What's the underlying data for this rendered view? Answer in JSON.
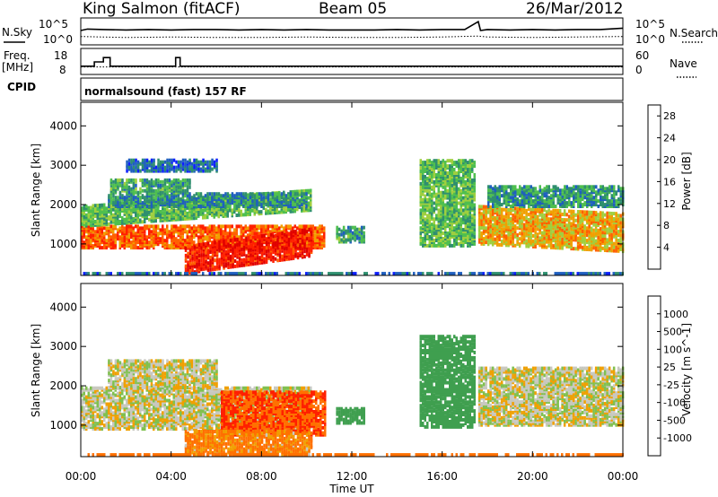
{
  "header": {
    "station": "King Salmon (fitACF)",
    "beam": "Beam 05",
    "date": "26/Mar/2012"
  },
  "colors": {
    "background": "#ffffff",
    "frame": "#000000",
    "noise_sky": "#000000",
    "noise_search": "#000000"
  },
  "chart_data": [
    {
      "type": "line",
      "panel": "noise",
      "labels": {
        "left": "N.Sky",
        "right": "N.Search"
      },
      "y_ticks_left": [
        "10^5",
        "10^0"
      ],
      "y_ticks_right": [
        "10^5",
        "10^0"
      ],
      "x_range_hours": [
        0,
        24
      ],
      "series": [
        {
          "name": "N.Sky",
          "style": "solid",
          "x": [
            0,
            0.3,
            1,
            2,
            3,
            4,
            5,
            6,
            7,
            8,
            9,
            10,
            11,
            12,
            13,
            14,
            15,
            16,
            17,
            17.6,
            17.7,
            18,
            19,
            20,
            21,
            22,
            23,
            24
          ],
          "y_log10": [
            2.7,
            3.0,
            2.9,
            2.8,
            2.9,
            2.8,
            2.9,
            2.9,
            2.8,
            2.9,
            2.8,
            2.9,
            2.8,
            2.8,
            2.8,
            2.9,
            2.8,
            2.9,
            2.9,
            4.6,
            2.7,
            2.9,
            2.8,
            2.9,
            2.8,
            2.9,
            2.9,
            3.2
          ]
        },
        {
          "name": "N.Search",
          "style": "dotted",
          "x": [
            0,
            2,
            4,
            6,
            8,
            10,
            12,
            14,
            16,
            17.6,
            18,
            20,
            22,
            24
          ],
          "y_log10": [
            1.4,
            1.2,
            1.3,
            1.2,
            1.2,
            1.3,
            1.2,
            1.2,
            1.3,
            1.5,
            1.3,
            1.2,
            1.3,
            1.4
          ]
        }
      ]
    },
    {
      "type": "line",
      "panel": "frequency",
      "labels": {
        "left_top": "Freq.",
        "left_bottom": "[MHz]",
        "right": "Nave"
      },
      "y_ticks_left": [
        "18",
        "8"
      ],
      "y_ticks_right": [
        "60",
        "0"
      ],
      "ylim_left": [
        8,
        18
      ],
      "ylim_right": [
        0,
        60
      ],
      "series": [
        {
          "name": "Freq.",
          "style": "solid",
          "x": [
            0,
            0.6,
            0.6,
            1.0,
            1.0,
            1.3,
            1.3,
            4.2,
            4.2,
            4.4,
            4.4,
            24
          ],
          "y": [
            11,
            11,
            13,
            13,
            15,
            15,
            11,
            11,
            15,
            15,
            11,
            11
          ]
        },
        {
          "name": "Nave",
          "style": "dotted",
          "x": [
            0,
            24
          ],
          "y": [
            16,
            16
          ]
        }
      ]
    },
    {
      "type": "heatmap",
      "panel": "power",
      "cpid_label": "CPID",
      "program": "normalsound (fast) 157 RF",
      "ylabel": "Slant Range [km]",
      "y_ticks": [
        1000,
        2000,
        3000,
        4000
      ],
      "ylim": [
        200,
        4600
      ],
      "xlim_hours": [
        0,
        24
      ],
      "colorbar": {
        "label": "Power [dB]",
        "tick_labels": [
          "4",
          "8",
          "12",
          "16",
          "20",
          "24",
          "28"
        ],
        "tick_values": [
          4,
          8,
          12,
          16,
          20,
          24,
          28
        ],
        "range": [
          0,
          30
        ],
        "colors": [
          "#0d1fff",
          "#1f5fbf",
          "#2f8f6f",
          "#4fbf4f",
          "#9fcf3f",
          "#f0a000",
          "#ff6000",
          "#ff2000",
          "#e00000"
        ]
      },
      "regions": [
        {
          "t0": 0.0,
          "t1": 10.8,
          "r0": 950,
          "r1": 1500,
          "dB": 22,
          "slope": 0
        },
        {
          "t0": 0.0,
          "t1": 10.2,
          "r0": 1500,
          "r1": 2000,
          "dB": 12,
          "slope": 40
        },
        {
          "t0": 1.2,
          "t1": 10.0,
          "r0": 2000,
          "r1": 2350,
          "dB": 8,
          "slope": 0
        },
        {
          "t0": 1.3,
          "t1": 4.8,
          "r0": 2350,
          "r1": 2700,
          "dB": 10,
          "slope": 0
        },
        {
          "t0": 2.0,
          "t1": 6.0,
          "r0": 2900,
          "r1": 3200,
          "dB": 6,
          "slope": 0
        },
        {
          "t0": 4.6,
          "t1": 10.2,
          "r0": 300,
          "r1": 1000,
          "dB": 26,
          "slope": 80
        },
        {
          "t0": 11.3,
          "t1": 12.5,
          "r0": 1100,
          "r1": 1500,
          "dB": 10,
          "slope": 0
        },
        {
          "t0": 15.0,
          "t1": 17.4,
          "r0": 1000,
          "r1": 3200,
          "dB": 12,
          "slope": 0
        },
        {
          "t0": 17.6,
          "t1": 24.0,
          "r0": 1050,
          "r1": 2000,
          "dB": 18,
          "slope": -30
        },
        {
          "t0": 18.0,
          "t1": 24.0,
          "r0": 2000,
          "r1": 2500,
          "dB": 9,
          "slope": 0
        },
        {
          "t0": 0.0,
          "t1": 24.0,
          "r0": 200,
          "r1": 300,
          "dB": 6,
          "slope": 0
        }
      ]
    },
    {
      "type": "heatmap",
      "panel": "velocity",
      "ylabel": "Slant Range [km]",
      "y_ticks": [
        1000,
        2000,
        3000,
        4000
      ],
      "ylim": [
        200,
        4600
      ],
      "xlim_hours": [
        0,
        24
      ],
      "xlabel": "Time UT",
      "x_ticks": [
        "00:00",
        "04:00",
        "08:00",
        "12:00",
        "16:00",
        "20:00",
        "00:00"
      ],
      "colorbar": {
        "label": "Velocity [m s^-1]",
        "tick_labels": [
          "1000",
          "500",
          "100",
          "25",
          "-25",
          "-100",
          "-500",
          "-1000"
        ],
        "colors": [
          "#1030c0",
          "#2f70b0",
          "#3f9f4f",
          "#80c050",
          "#c8c8c0",
          "#f0a000",
          "#ff7000",
          "#ff2000",
          "#e00000"
        ]
      },
      "regions": [
        {
          "t0": 0.0,
          "t1": 10.2,
          "r0": 950,
          "r1": 2000,
          "v": 0
        },
        {
          "t0": 1.2,
          "t1": 6.0,
          "r0": 2000,
          "r1": 2700,
          "v": 0
        },
        {
          "t0": 6.2,
          "t1": 10.8,
          "r0": 800,
          "r1": 1900,
          "v": -300
        },
        {
          "t0": 4.6,
          "t1": 10.2,
          "r0": 300,
          "r1": 900,
          "v": -80
        },
        {
          "t0": 11.3,
          "t1": 12.5,
          "r0": 1100,
          "r1": 1500,
          "v": 150
        },
        {
          "t0": 15.0,
          "t1": 17.4,
          "r0": 1000,
          "r1": 3300,
          "v": 200
        },
        {
          "t0": 17.6,
          "t1": 24.0,
          "r0": 1050,
          "r1": 2500,
          "v": 0
        },
        {
          "t0": 0.0,
          "t1": 24.0,
          "r0": 200,
          "r1": 300,
          "v": -120
        }
      ]
    }
  ]
}
